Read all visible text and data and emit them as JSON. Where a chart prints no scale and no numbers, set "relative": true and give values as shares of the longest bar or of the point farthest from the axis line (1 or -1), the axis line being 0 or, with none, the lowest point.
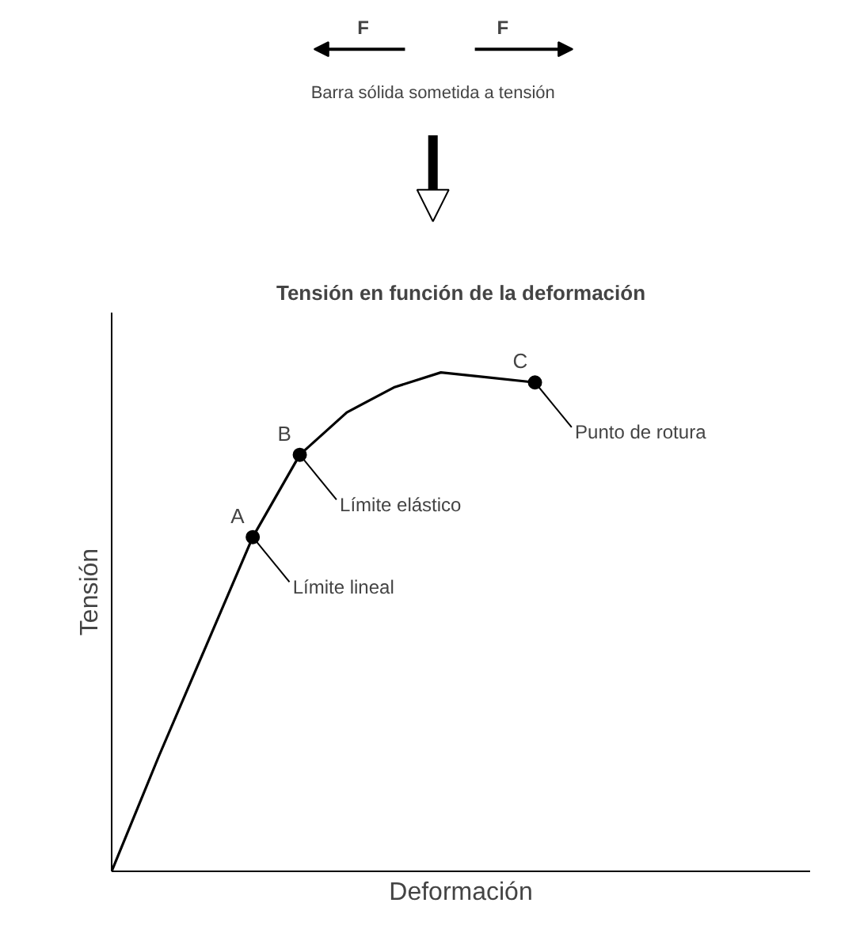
{
  "chart_data": {
    "type": "line",
    "title": "Tensión en función de la deformación",
    "xlabel": "Deformación",
    "ylabel": "Tensión",
    "relative": true,
    "tick_labels": false,
    "categories": [
      null,
      null,
      null,
      null,
      null,
      null,
      null,
      null,
      null,
      null
    ],
    "series": [
      {
        "color": "#000000",
        "values": [
          0,
          0.23,
          0.45,
          0.67,
          0.835,
          0.92,
          0.97,
          1.0,
          0.99,
          0.98
        ]
      }
    ],
    "annotations": [
      "F",
      "F",
      "Barra sólida sometida a tensión",
      "A",
      "B",
      "C",
      "Límite lineal",
      "Límite elástico",
      "Punto de rotura"
    ]
  }
}
